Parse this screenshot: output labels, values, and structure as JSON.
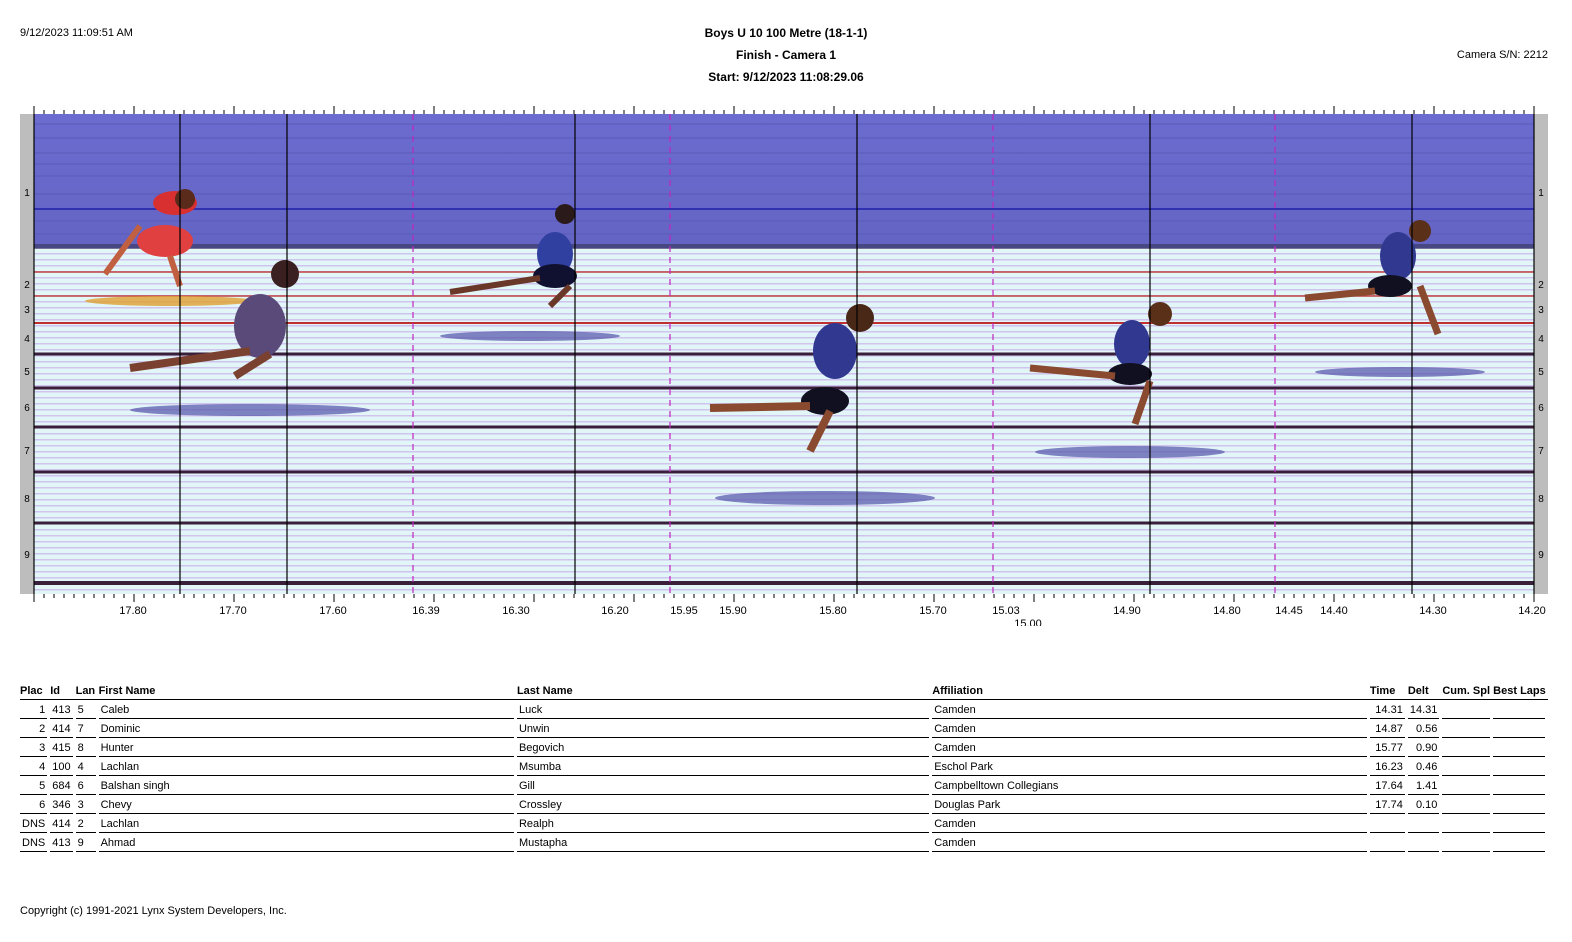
{
  "header": {
    "timestamp": "9/12/2023 11:09:51 AM",
    "event_title": "Boys U 10 100 Metre (18-1-1)",
    "camera": "Finish - Camera 1",
    "start": "Start: 9/12/2023 11:08:29.06",
    "camera_sn": "Camera S/N: 2212"
  },
  "finish_photo": {
    "lane_labels": [
      "1",
      "2",
      "3",
      "4",
      "5",
      "6",
      "7",
      "8",
      "9"
    ],
    "time_ticks": [
      "17.80",
      "17.70",
      "17.60",
      "16.39",
      "16.30",
      "16.20",
      "15.95",
      "15.90",
      "15.80",
      "15.70",
      "15.03",
      "15.00",
      "14.90",
      "14.80",
      "14.45",
      "14.40",
      "14.30",
      "14.20"
    ],
    "colors": {
      "sky": "#6f6fcf",
      "track": "#dff3f7",
      "solid_line": "#000000",
      "dashed_line": "#c026c0",
      "lane_line": "#3a1f3a"
    }
  },
  "results": {
    "columns": [
      "Plac",
      "Id",
      "Lan",
      "First Name",
      "Last Name",
      "Affiliation",
      "Time",
      "Delt",
      "Cum. Spl",
      "Best Laps"
    ],
    "rows": [
      {
        "place": "1",
        "id": "413",
        "lane": "5",
        "first": "Caleb",
        "last": "Luck",
        "affiliation": "Camden",
        "time": "14.31",
        "delta": "14.31"
      },
      {
        "place": "2",
        "id": "414",
        "lane": "7",
        "first": "Dominic",
        "last": "Unwin",
        "affiliation": "Camden",
        "time": "14.87",
        "delta": "0.56"
      },
      {
        "place": "3",
        "id": "415",
        "lane": "8",
        "first": "Hunter",
        "last": "Begovich",
        "affiliation": "Camden",
        "time": "15.77",
        "delta": "0.90"
      },
      {
        "place": "4",
        "id": "100",
        "lane": "4",
        "first": "Lachlan",
        "last": "Msumba",
        "affiliation": "Eschol Park",
        "time": "16.23",
        "delta": "0.46"
      },
      {
        "place": "5",
        "id": "684",
        "lane": "6",
        "first": "Balshan singh",
        "last": "Gill",
        "affiliation": "Campbelltown Collegians",
        "time": "17.64",
        "delta": "1.41"
      },
      {
        "place": "6",
        "id": "346",
        "lane": "3",
        "first": "Chevy",
        "last": "Crossley",
        "affiliation": "Douglas Park",
        "time": "17.74",
        "delta": "0.10"
      },
      {
        "place": "DNS",
        "id": "414",
        "lane": "2",
        "first": "Lachlan",
        "last": "Realph",
        "affiliation": "Camden",
        "time": "",
        "delta": ""
      },
      {
        "place": "DNS",
        "id": "413",
        "lane": "9",
        "first": "Ahmad",
        "last": "Mustapha",
        "affiliation": "Camden",
        "time": "",
        "delta": ""
      }
    ]
  },
  "footer": {
    "copyright": "Copyright (c) 1991-2021 Lynx System Developers, Inc."
  }
}
